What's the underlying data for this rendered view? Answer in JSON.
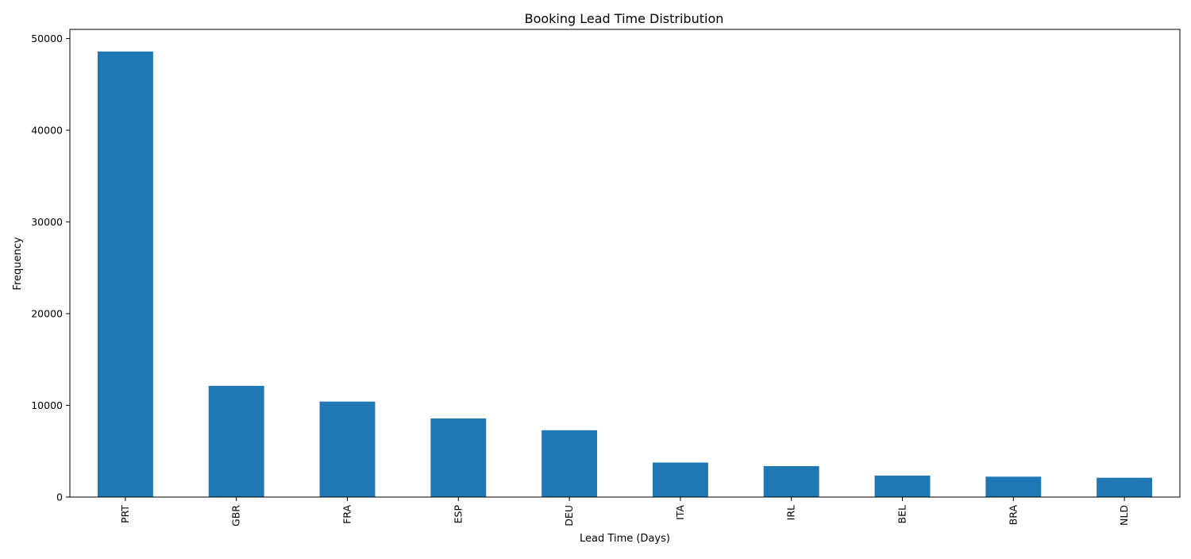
{
  "chart_data": {
    "type": "bar",
    "title": "Booking Lead Time Distribution",
    "xlabel": "Lead Time (Days)",
    "ylabel": "Frequency",
    "categories": [
      "PRT",
      "GBR",
      "FRA",
      "ESP",
      "DEU",
      "ITA",
      "IRL",
      "BEL",
      "BRA",
      "NLD"
    ],
    "values": [
      48590,
      12129,
      10415,
      8568,
      7287,
      3766,
      3375,
      2342,
      2224,
      2104
    ],
    "ylim": [
      0,
      51000
    ],
    "yticks": [
      0,
      10000,
      20000,
      30000,
      40000,
      50000
    ],
    "ytick_labels": [
      "0",
      "10000",
      "20000",
      "30000",
      "40000",
      "50000"
    ],
    "x_tick_rotation": "vertical",
    "grid": false,
    "legend": "none",
    "bar_color": "#1f77b4",
    "axis_color": "#000000"
  }
}
